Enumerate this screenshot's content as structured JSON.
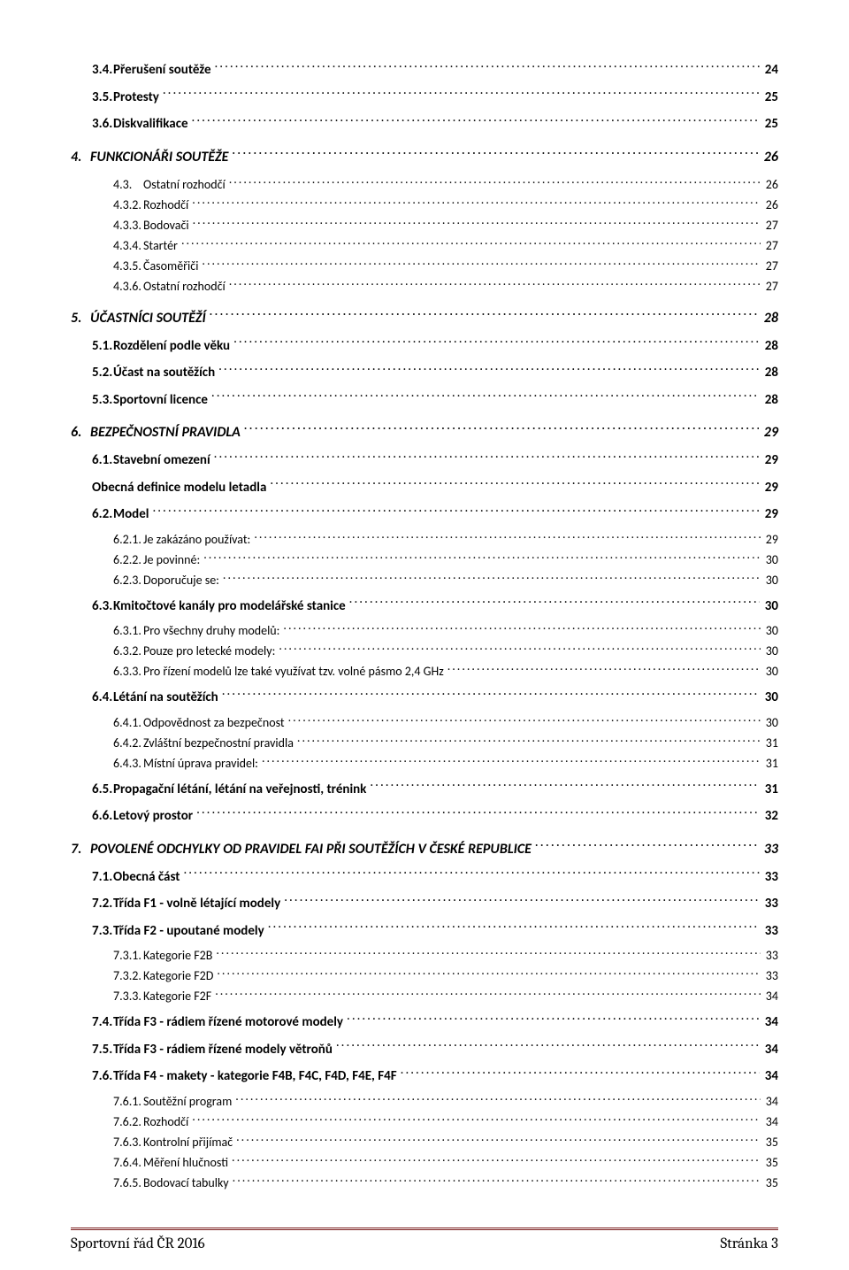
{
  "toc": [
    {
      "level": 2,
      "num": "3.4.",
      "title": "Přerušení soutěže",
      "page": "24"
    },
    {
      "level": 2,
      "num": "3.5.",
      "title": "Protesty",
      "page": "25"
    },
    {
      "level": 2,
      "num": "3.6.",
      "title": "Diskvalifikace",
      "page": "25"
    },
    {
      "level": 1,
      "num": "4.",
      "title": "FUNKCIONÁŘI SOUTĚŽE",
      "page": "26"
    },
    {
      "level": 3,
      "num": "4.3.",
      "title": "Ostatní rozhodčí",
      "page": "26"
    },
    {
      "level": 3,
      "num": "4.3.2.",
      "title": "Rozhodčí",
      "page": "26"
    },
    {
      "level": 3,
      "num": "4.3.3.",
      "title": "Bodovači",
      "page": "27"
    },
    {
      "level": 3,
      "num": "4.3.4.",
      "title": "Startér",
      "page": "27"
    },
    {
      "level": 3,
      "num": "4.3.5.",
      "title": "Časoměřiči",
      "page": "27"
    },
    {
      "level": 3,
      "num": "4.3.6.",
      "title": "Ostatní rozhodčí",
      "page": "27"
    },
    {
      "level": 1,
      "num": "5.",
      "title": "ÚČASTNÍCI SOUTĚŽÍ",
      "page": "28"
    },
    {
      "level": 2,
      "num": "5.1.",
      "title": "Rozdělení podle věku",
      "page": "28"
    },
    {
      "level": 2,
      "num": "5.2.",
      "title": "Účast na soutěžích",
      "page": "28"
    },
    {
      "level": 2,
      "num": "5.3.",
      "title": "Sportovní licence",
      "page": "28"
    },
    {
      "level": 1,
      "num": "6.",
      "title": "BEZPEČNOSTNÍ PRAVIDLA",
      "page": "29"
    },
    {
      "level": 2,
      "num": "6.1.",
      "title": "Stavební omezení",
      "page": "29"
    },
    {
      "level": "2nb",
      "num": "",
      "title": "Obecná definice modelu letadla",
      "page": "29"
    },
    {
      "level": 2,
      "num": "6.2.",
      "title": "Model",
      "page": "29"
    },
    {
      "level": 3,
      "num": "6.2.1.",
      "title": "Je zakázáno používat:",
      "page": "29"
    },
    {
      "level": 3,
      "num": "6.2.2.",
      "title": "Je povinné:",
      "page": "30"
    },
    {
      "level": 3,
      "num": "6.2.3.",
      "title": "Doporučuje se:",
      "page": "30"
    },
    {
      "level": 2,
      "num": "6.3.",
      "title": "Kmitočtové kanály pro modelářské stanice",
      "page": "30"
    },
    {
      "level": 3,
      "num": "6.3.1.",
      "title": "Pro všechny druhy modelů:",
      "page": "30"
    },
    {
      "level": 3,
      "num": "6.3.2.",
      "title": "Pouze pro letecké modely:",
      "page": "30"
    },
    {
      "level": 3,
      "num": "6.3.3.",
      "title": "Pro řízení modelů lze také využívat tzv. volné pásmo 2,4 GHz",
      "page": "30"
    },
    {
      "level": 2,
      "num": "6.4.",
      "title": "Létání na soutěžích",
      "page": "30"
    },
    {
      "level": 3,
      "num": "6.4.1.",
      "title": "Odpovědnost za bezpečnost",
      "page": "30"
    },
    {
      "level": 3,
      "num": "6.4.2.",
      "title": "Zvláštní bezpečnostní pravidla",
      "page": "31"
    },
    {
      "level": 3,
      "num": "6.4.3.",
      "title": "Místní úprava pravidel:",
      "page": "31"
    },
    {
      "level": 2,
      "num": "6.5.",
      "title": "Propagační létání, létání na veřejnosti, trénink",
      "page": "31"
    },
    {
      "level": 2,
      "num": "6.6.",
      "title": "Letový prostor",
      "page": "32"
    },
    {
      "level": 1,
      "num": "7.",
      "title": "POVOLENÉ ODCHYLKY OD PRAVIDEL FAI PŘI SOUTĚŽÍCH V ČESKÉ REPUBLICE",
      "page": "33"
    },
    {
      "level": 2,
      "num": "7.1.",
      "title": "Obecná část",
      "page": "33"
    },
    {
      "level": 2,
      "num": "7.2.",
      "title": "Třída F1 - volně létající modely",
      "page": "33"
    },
    {
      "level": 2,
      "num": "7.3.",
      "title": "Třída F2 - upoutané modely",
      "page": "33"
    },
    {
      "level": 3,
      "num": "7.3.1.",
      "title": "Kategorie F2B",
      "page": "33"
    },
    {
      "level": 3,
      "num": "7.3.2.",
      "title": "Kategorie F2D",
      "page": "33"
    },
    {
      "level": 3,
      "num": "7.3.3.",
      "title": "Kategorie F2F",
      "page": "34"
    },
    {
      "level": 2,
      "num": "7.4.",
      "title": "Třída F3 - rádiem řízené motorové modely",
      "page": "34"
    },
    {
      "level": 2,
      "num": "7.5.",
      "title": "Třída F3 - rádiem řízené modely větroňů",
      "page": "34"
    },
    {
      "level": 2,
      "num": "7.6.",
      "title": "Třída F4 - makety - kategorie F4B, F4C, F4D, F4E, F4F",
      "page": "34"
    },
    {
      "level": 3,
      "num": "7.6.1.",
      "title": "Soutěžní program",
      "page": "34"
    },
    {
      "level": 3,
      "num": "7.6.2.",
      "title": "Rozhodčí",
      "page": "34"
    },
    {
      "level": 3,
      "num": "7.6.3.",
      "title": "Kontrolní přijímač",
      "page": "35"
    },
    {
      "level": 3,
      "num": "7.6.4.",
      "title": "Měření hlučnosti",
      "page": "35"
    },
    {
      "level": 3,
      "num": "7.6.5.",
      "title": "Bodovací tabulky",
      "page": "35"
    }
  ],
  "footer": {
    "left": "Sportovní řád ČR 2016",
    "right": "Stránka 3",
    "line_color": "#7a1b1b"
  }
}
